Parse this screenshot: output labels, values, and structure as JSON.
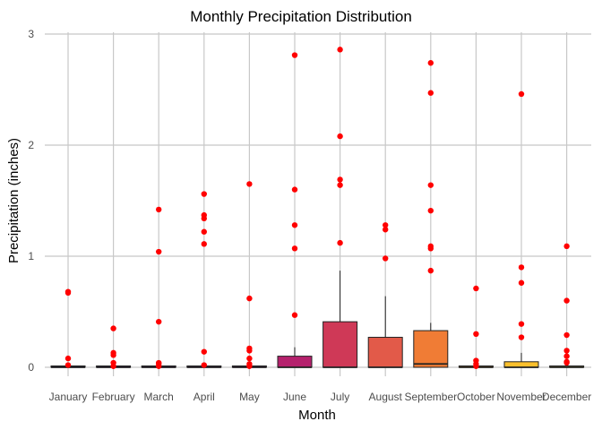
{
  "chart_data": {
    "type": "boxplot",
    "title": "Monthly Precipitation Distribution",
    "xlabel": "Month",
    "ylabel": "Precipitation (inches)",
    "ylim": [
      -0.05,
      3.0
    ],
    "yticks": [
      0,
      1,
      2,
      3
    ],
    "grid": true,
    "legend": "none",
    "outlier_color": "#ff0000",
    "gridline_color": "#c8c8c8",
    "categories": [
      "January",
      "February",
      "March",
      "April",
      "May",
      "June",
      "July",
      "August",
      "September",
      "October",
      "November",
      "December"
    ],
    "boxes": [
      {
        "name": "January",
        "q1": 0,
        "median": 0,
        "q3": 0,
        "whisker_low": 0,
        "whisker_high": 0,
        "fill": "#1b0c41",
        "outliers": [
          0.68,
          0.67,
          0.08,
          0.02
        ]
      },
      {
        "name": "February",
        "q1": 0,
        "median": 0,
        "q3": 0,
        "whisker_low": 0,
        "whisker_high": 0,
        "fill": "#2f0a5b",
        "outliers": [
          0.35,
          0.13,
          0.11,
          0.04,
          0.01
        ]
      },
      {
        "name": "March",
        "q1": 0,
        "median": 0,
        "q3": 0,
        "whisker_low": 0,
        "whisker_high": 0,
        "fill": "#420a68",
        "outliers": [
          1.42,
          1.04,
          0.41,
          0.04,
          0.03,
          0.01
        ]
      },
      {
        "name": "April",
        "q1": 0,
        "median": 0,
        "q3": 0,
        "whisker_low": 0,
        "whisker_high": 0,
        "fill": "#57106e",
        "outliers": [
          1.56,
          1.37,
          1.34,
          1.22,
          1.11,
          0.14,
          0.02
        ]
      },
      {
        "name": "May",
        "q1": 0,
        "median": 0,
        "q3": 0,
        "whisker_low": 0,
        "whisker_high": 0,
        "fill": "#6a176e",
        "outliers": [
          1.65,
          0.62,
          0.17,
          0.15,
          0.08,
          0.03,
          0.01
        ]
      },
      {
        "name": "June",
        "q1": 0,
        "median": 0,
        "q3": 0.1,
        "whisker_low": 0,
        "whisker_high": 0.18,
        "fill": "#b5216d",
        "outliers": [
          2.81,
          1.6,
          1.28,
          1.07,
          0.47
        ]
      },
      {
        "name": "July",
        "q1": 0,
        "median": 0,
        "q3": 0.41,
        "whisker_low": 0,
        "whisker_high": 0.87,
        "fill": "#cf3957",
        "outliers": [
          2.86,
          2.08,
          1.69,
          1.64,
          1.12
        ]
      },
      {
        "name": "August",
        "q1": 0,
        "median": 0,
        "q3": 0.27,
        "whisker_low": 0,
        "whisker_high": 0.64,
        "fill": "#e25a49",
        "outliers": [
          1.28,
          1.24,
          0.98
        ]
      },
      {
        "name": "September",
        "q1": 0,
        "median": 0.03,
        "q3": 0.33,
        "whisker_low": 0,
        "whisker_high": 0.4,
        "fill": "#f07c35",
        "outliers": [
          2.74,
          2.47,
          1.64,
          1.41,
          1.09,
          1.07,
          0.87
        ]
      },
      {
        "name": "October",
        "q1": 0,
        "median": 0,
        "q3": 0,
        "whisker_low": 0,
        "whisker_high": 0,
        "fill": "#f59d2a",
        "outliers": [
          0.71,
          0.3,
          0.06,
          0.03,
          0.01
        ]
      },
      {
        "name": "November",
        "q1": 0,
        "median": 0,
        "q3": 0.05,
        "whisker_low": 0,
        "whisker_high": 0.13,
        "fill": "#fbc02d",
        "outliers": [
          2.46,
          0.9,
          0.76,
          0.39,
          0.27
        ]
      },
      {
        "name": "December",
        "q1": 0,
        "median": 0,
        "q3": 0.01,
        "whisker_low": 0,
        "whisker_high": 0.02,
        "fill": "#f4e56b",
        "outliers": [
          1.09,
          0.6,
          0.29,
          0.15,
          0.1,
          0.05,
          0.04
        ]
      }
    ]
  }
}
